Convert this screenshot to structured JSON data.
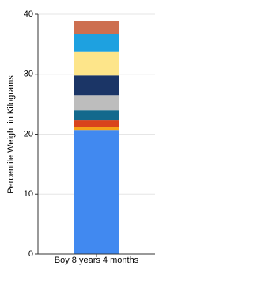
{
  "chart_data": {
    "type": "stacked_bar",
    "y_label": "Percentile Weight in Kilograms",
    "categories": [
      "Boy 8 years 4 months"
    ],
    "series": [
      {
        "color": "#4189f0",
        "values": [
          20.7
        ]
      },
      {
        "color": "#f5a31a",
        "values": [
          0.5
        ]
      },
      {
        "color": "#d9441c",
        "values": [
          1.1
        ]
      },
      {
        "color": "#13698d",
        "values": [
          1.7
        ]
      },
      {
        "color": "#bdbdbd",
        "values": [
          2.5
        ]
      },
      {
        "color": "#1b3566",
        "values": [
          3.3
        ]
      },
      {
        "color": "#fde58a",
        "values": [
          3.9
        ]
      },
      {
        "color": "#1ea1e0",
        "values": [
          3.0
        ]
      },
      {
        "color": "#cd6f50",
        "values": [
          2.2
        ]
      }
    ],
    "ylim": [
      0,
      40
    ],
    "yticks": [
      0,
      10,
      20,
      30,
      40
    ],
    "grid": true
  }
}
